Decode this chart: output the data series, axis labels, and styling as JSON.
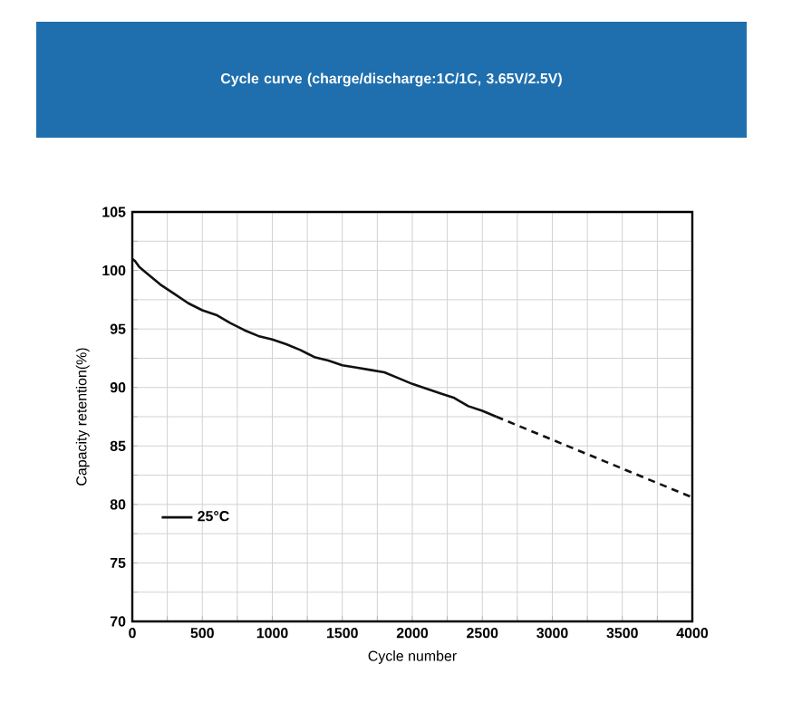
{
  "chart_data": {
    "type": "line",
    "title": "Cycle curve (charge/discharge:1C/1C, 3.65V/2.5V)",
    "xlabel": "Cycle number",
    "ylabel": "Capacity retention(%)",
    "xlim": [
      0,
      4000
    ],
    "ylim": [
      70,
      105
    ],
    "xticks": [
      0,
      {
        "value": 250,
        "label": null
      },
      500,
      {
        "value": 750,
        "label": null
      },
      1000,
      {
        "value": 1250,
        "label": null
      },
      1500,
      {
        "value": 1750,
        "label": null
      },
      2000,
      {
        "value": 2250,
        "label": null
      },
      2500,
      {
        "value": 2750,
        "label": null
      },
      3000,
      {
        "value": 3250,
        "label": null
      },
      3500,
      {
        "value": 3750,
        "label": null
      },
      4000
    ],
    "yticks": [
      70,
      {
        "value": 72.5,
        "label": null
      },
      75,
      {
        "value": 77.5,
        "label": null
      },
      80,
      {
        "value": 82.5,
        "label": null
      },
      85,
      {
        "value": 87.5,
        "label": null
      },
      90,
      {
        "value": 92.5,
        "label": null
      },
      95,
      {
        "value": 97.5,
        "label": null
      },
      100,
      {
        "value": 102.5,
        "label": null
      },
      105
    ],
    "grid": true,
    "legend": "bottom left",
    "marker": "none",
    "series": [
      {
        "name": "25°C",
        "color": "#111111",
        "line_style": "solid",
        "x": [
          0,
          20,
          50,
          100,
          200,
          300,
          400,
          500,
          600,
          700,
          800,
          900,
          1000,
          1100,
          1200,
          1250,
          1300,
          1400,
          1500,
          1600,
          1700,
          1800,
          1900,
          2000,
          2100,
          2200,
          2300,
          2400,
          2500,
          2600
        ],
        "values": [
          101,
          100.8,
          100.3,
          99.8,
          98.8,
          98,
          97.2,
          96.6,
          96.2,
          95.5,
          94.9,
          94.4,
          94.1,
          93.7,
          93.2,
          92.9,
          92.6,
          92.3,
          91.9,
          91.7,
          91.5,
          91.3,
          90.8,
          90.3,
          89.9,
          89.5,
          89.1,
          88.4,
          88,
          87.5
        ]
      },
      {
        "color": "#111111",
        "line_style": "dashed",
        "x": [
          2600,
          4000
        ],
        "values": [
          87.5,
          80.6
        ]
      }
    ]
  }
}
